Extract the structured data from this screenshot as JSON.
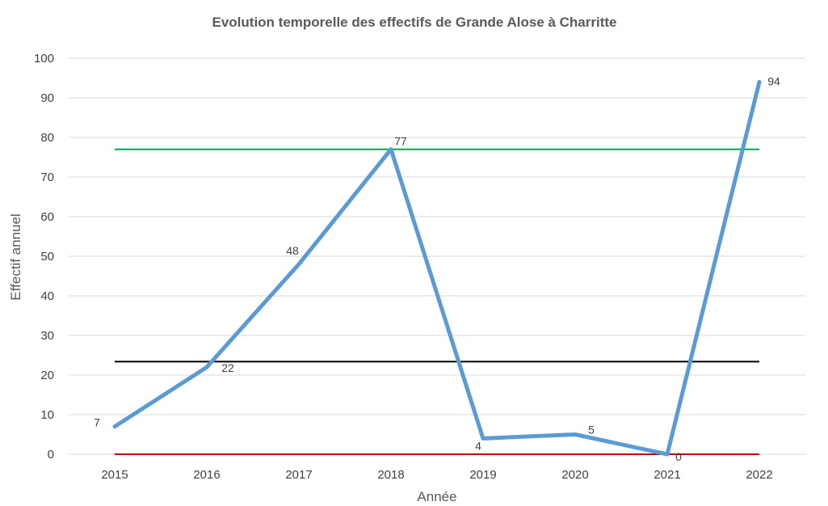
{
  "chart_data": {
    "type": "line",
    "title": "Evolution temporelle des effectifs de Grande Alose à Charritte",
    "xlabel": "Année",
    "ylabel": "Effectif annuel",
    "categories": [
      "2015",
      "2016",
      "2017",
      "2018",
      "2019",
      "2020",
      "2021",
      "2022"
    ],
    "ylim": [
      0,
      100
    ],
    "yticks": [
      0,
      10,
      20,
      30,
      40,
      50,
      60,
      70,
      80,
      90,
      100
    ],
    "grid": true,
    "series": [
      {
        "values": [
          7,
          22,
          48,
          77,
          4,
          5,
          0,
          94
        ],
        "color": "#5b9bd5",
        "data_labels": true
      }
    ],
    "reference_lines": [
      {
        "value": 77,
        "color": "#00a651"
      },
      {
        "value": 23.4,
        "color": "#000000"
      },
      {
        "value": 0,
        "color": "#c00000"
      }
    ]
  }
}
